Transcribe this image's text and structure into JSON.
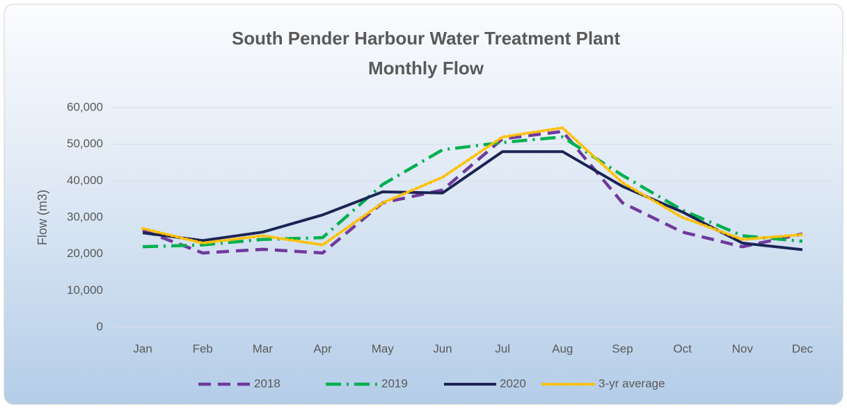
{
  "chart_data": {
    "type": "line",
    "title": "South Pender Harbour Water Treatment Plant",
    "subtitle": "Monthly Flow",
    "y_label": "Flow (m3)",
    "categories": [
      "Jan",
      "Feb",
      "Mar",
      "Apr",
      "May",
      "Jun",
      "Jul",
      "Aug",
      "Sep",
      "Oct",
      "Nov",
      "Dec"
    ],
    "series": [
      {
        "name": "2018",
        "color": "#6f3a9e",
        "dash": "dash",
        "values": [
          26500,
          20300,
          21300,
          20300,
          34000,
          37500,
          51500,
          53500,
          34000,
          26000,
          22000,
          25500
        ]
      },
      {
        "name": "2019",
        "color": "#00b050",
        "dash": "dashdot",
        "values": [
          22000,
          22500,
          24000,
          24500,
          39000,
          48500,
          50500,
          52000,
          41500,
          32000,
          25000,
          23500
        ]
      },
      {
        "name": "2020",
        "color": "#1b2454",
        "dash": "solid",
        "values": [
          25800,
          23700,
          26000,
          30700,
          37000,
          36700,
          48000,
          48000,
          38500,
          31500,
          23000,
          21200
        ]
      },
      {
        "name": "3-yr average",
        "color": "#ffc000",
        "dash": "dot",
        "values": [
          27000,
          23000,
          25000,
          22500,
          34000,
          41000,
          52000,
          54500,
          39500,
          30000,
          24000,
          25300
        ]
      }
    ],
    "ylim": [
      0,
      60000
    ],
    "yticks": [
      0,
      {
        "value": 10000,
        "label": "10,000"
      },
      {
        "value": 20000,
        "label": "20,000"
      },
      {
        "value": 30000,
        "label": "30,000"
      },
      {
        "value": 40000,
        "label": "40,000"
      },
      {
        "value": 50000,
        "label": "50,000"
      },
      {
        "value": 60000,
        "label": "60,000"
      }
    ],
    "grid": true,
    "legend": "bottom"
  }
}
